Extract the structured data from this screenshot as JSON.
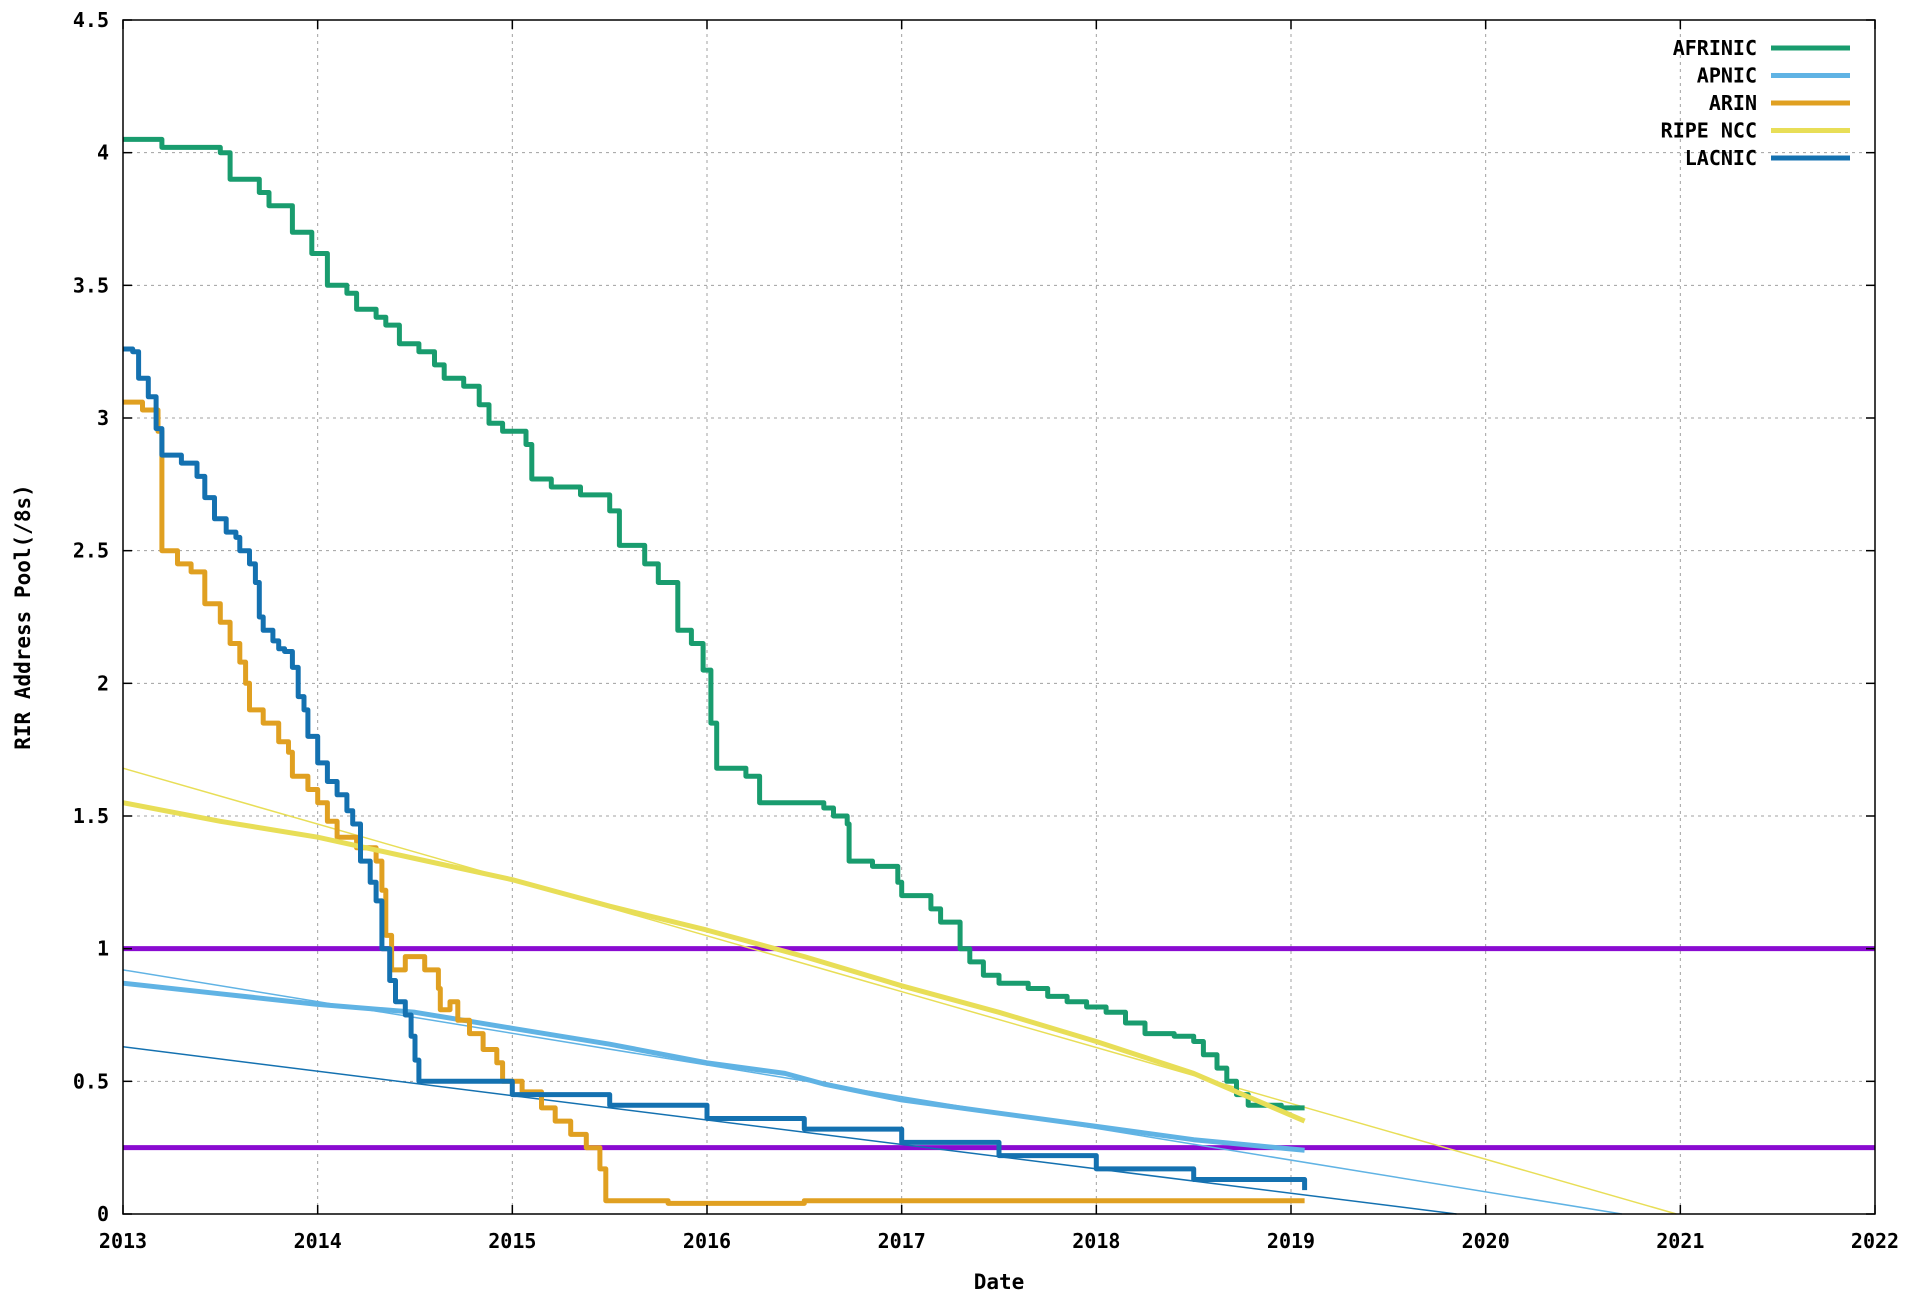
{
  "chart_data": {
    "type": "line",
    "xlabel": "Date",
    "ylabel": "RIR Address Pool(/8s)",
    "xlim": [
      2013,
      2022
    ],
    "ylim": [
      0,
      4.5
    ],
    "x_ticks": [
      "2013",
      "2014",
      "2015",
      "2016",
      "2017",
      "2018",
      "2019",
      "2020",
      "2021",
      "2022"
    ],
    "y_ticks": [
      "0",
      "0.5",
      "1",
      "1.5",
      "2",
      "2.5",
      "3",
      "3.5",
      "4",
      "4.5"
    ],
    "grid": true,
    "legend_position": "top-right",
    "thresholds": [
      {
        "value": 1.0,
        "color": "#8a0bd1"
      },
      {
        "value": 0.25,
        "color": "#8a0bd1"
      }
    ],
    "series": [
      {
        "name": "AFRINIC",
        "color": "#199c6e",
        "points": [
          [
            2013.0,
            4.05
          ],
          [
            2013.2,
            4.02
          ],
          [
            2013.5,
            4.0
          ],
          [
            2013.55,
            3.9
          ],
          [
            2013.7,
            3.85
          ],
          [
            2013.75,
            3.8
          ],
          [
            2013.87,
            3.7
          ],
          [
            2013.97,
            3.62
          ],
          [
            2014.05,
            3.5
          ],
          [
            2014.15,
            3.47
          ],
          [
            2014.2,
            3.41
          ],
          [
            2014.3,
            3.38
          ],
          [
            2014.35,
            3.35
          ],
          [
            2014.42,
            3.28
          ],
          [
            2014.52,
            3.25
          ],
          [
            2014.6,
            3.2
          ],
          [
            2014.65,
            3.15
          ],
          [
            2014.75,
            3.12
          ],
          [
            2014.83,
            3.05
          ],
          [
            2014.88,
            2.98
          ],
          [
            2014.95,
            2.95
          ],
          [
            2015.07,
            2.9
          ],
          [
            2015.1,
            2.77
          ],
          [
            2015.2,
            2.74
          ],
          [
            2015.35,
            2.71
          ],
          [
            2015.5,
            2.65
          ],
          [
            2015.55,
            2.52
          ],
          [
            2015.68,
            2.45
          ],
          [
            2015.75,
            2.38
          ],
          [
            2015.85,
            2.2
          ],
          [
            2015.92,
            2.15
          ],
          [
            2015.98,
            2.05
          ],
          [
            2016.02,
            1.85
          ],
          [
            2016.05,
            1.68
          ],
          [
            2016.2,
            1.65
          ],
          [
            2016.27,
            1.6
          ],
          [
            2016.27,
            1.55
          ],
          [
            2016.6,
            1.53
          ],
          [
            2016.65,
            1.5
          ],
          [
            2016.72,
            1.47
          ],
          [
            2016.73,
            1.33
          ],
          [
            2016.85,
            1.31
          ],
          [
            2016.98,
            1.25
          ],
          [
            2017.0,
            1.2
          ],
          [
            2017.15,
            1.15
          ],
          [
            2017.2,
            1.1
          ],
          [
            2017.3,
            1.0
          ],
          [
            2017.35,
            0.95
          ],
          [
            2017.42,
            0.9
          ],
          [
            2017.5,
            0.87
          ],
          [
            2017.65,
            0.85
          ],
          [
            2017.75,
            0.82
          ],
          [
            2017.85,
            0.8
          ],
          [
            2017.95,
            0.78
          ],
          [
            2018.05,
            0.76
          ],
          [
            2018.15,
            0.72
          ],
          [
            2018.25,
            0.68
          ],
          [
            2018.4,
            0.67
          ],
          [
            2018.5,
            0.65
          ],
          [
            2018.55,
            0.6
          ],
          [
            2018.62,
            0.55
          ],
          [
            2018.67,
            0.5
          ],
          [
            2018.72,
            0.45
          ],
          [
            2018.78,
            0.41
          ],
          [
            2018.95,
            0.4
          ],
          [
            2019.07,
            0.4
          ]
        ]
      },
      {
        "name": "APNIC",
        "color": "#60b3e4",
        "points": [
          [
            2013.0,
            0.87
          ],
          [
            2013.5,
            0.83
          ],
          [
            2014.0,
            0.79
          ],
          [
            2014.5,
            0.76
          ],
          [
            2015.0,
            0.7
          ],
          [
            2015.5,
            0.64
          ],
          [
            2016.0,
            0.57
          ],
          [
            2016.4,
            0.53
          ],
          [
            2016.6,
            0.49
          ],
          [
            2017.0,
            0.43
          ],
          [
            2017.5,
            0.38
          ],
          [
            2018.0,
            0.33
          ],
          [
            2018.5,
            0.28
          ],
          [
            2019.07,
            0.24
          ]
        ]
      },
      {
        "name": "ARIN",
        "color": "#e0a021",
        "points": [
          [
            2013.0,
            3.06
          ],
          [
            2013.1,
            3.03
          ],
          [
            2013.18,
            2.95
          ],
          [
            2013.2,
            2.5
          ],
          [
            2013.28,
            2.45
          ],
          [
            2013.35,
            2.42
          ],
          [
            2013.42,
            2.3
          ],
          [
            2013.5,
            2.23
          ],
          [
            2013.55,
            2.15
          ],
          [
            2013.6,
            2.08
          ],
          [
            2013.63,
            2.0
          ],
          [
            2013.65,
            1.9
          ],
          [
            2013.72,
            1.85
          ],
          [
            2013.8,
            1.78
          ],
          [
            2013.85,
            1.74
          ],
          [
            2013.87,
            1.65
          ],
          [
            2013.95,
            1.6
          ],
          [
            2014.0,
            1.55
          ],
          [
            2014.05,
            1.48
          ],
          [
            2014.1,
            1.42
          ],
          [
            2014.2,
            1.38
          ],
          [
            2014.3,
            1.33
          ],
          [
            2014.33,
            1.22
          ],
          [
            2014.35,
            1.05
          ],
          [
            2014.38,
            0.92
          ],
          [
            2014.45,
            0.97
          ],
          [
            2014.55,
            0.92
          ],
          [
            2014.62,
            0.85
          ],
          [
            2014.63,
            0.77
          ],
          [
            2014.68,
            0.8
          ],
          [
            2014.72,
            0.73
          ],
          [
            2014.78,
            0.68
          ],
          [
            2014.85,
            0.62
          ],
          [
            2014.92,
            0.57
          ],
          [
            2014.95,
            0.5
          ],
          [
            2015.05,
            0.46
          ],
          [
            2015.15,
            0.4
          ],
          [
            2015.22,
            0.35
          ],
          [
            2015.3,
            0.3
          ],
          [
            2015.38,
            0.25
          ],
          [
            2015.45,
            0.17
          ],
          [
            2015.48,
            0.05
          ],
          [
            2015.8,
            0.04
          ],
          [
            2016.5,
            0.05
          ],
          [
            2017.0,
            0.05
          ],
          [
            2017.32,
            0.05
          ],
          [
            2018.0,
            0.05
          ],
          [
            2019.07,
            0.05
          ]
        ]
      },
      {
        "name": "RIPE NCC",
        "color": "#e8de57",
        "points": [
          [
            2013.0,
            1.55
          ],
          [
            2013.5,
            1.48
          ],
          [
            2014.0,
            1.42
          ],
          [
            2014.5,
            1.34
          ],
          [
            2015.0,
            1.26
          ],
          [
            2015.5,
            1.16
          ],
          [
            2016.0,
            1.07
          ],
          [
            2016.5,
            0.97
          ],
          [
            2017.0,
            0.86
          ],
          [
            2017.5,
            0.76
          ],
          [
            2018.0,
            0.65
          ],
          [
            2018.5,
            0.53
          ],
          [
            2019.07,
            0.35
          ]
        ]
      },
      {
        "name": "LACNIC",
        "color": "#1471b0",
        "points": [
          [
            2013.0,
            3.26
          ],
          [
            2013.05,
            3.25
          ],
          [
            2013.08,
            3.15
          ],
          [
            2013.13,
            3.08
          ],
          [
            2013.17,
            2.96
          ],
          [
            2013.2,
            2.86
          ],
          [
            2013.3,
            2.83
          ],
          [
            2013.38,
            2.78
          ],
          [
            2013.42,
            2.7
          ],
          [
            2013.47,
            2.62
          ],
          [
            2013.53,
            2.57
          ],
          [
            2013.58,
            2.55
          ],
          [
            2013.6,
            2.5
          ],
          [
            2013.65,
            2.45
          ],
          [
            2013.68,
            2.38
          ],
          [
            2013.7,
            2.25
          ],
          [
            2013.72,
            2.2
          ],
          [
            2013.77,
            2.16
          ],
          [
            2013.8,
            2.13
          ],
          [
            2013.83,
            2.12
          ],
          [
            2013.87,
            2.06
          ],
          [
            2013.9,
            1.95
          ],
          [
            2013.93,
            1.9
          ],
          [
            2013.95,
            1.8
          ],
          [
            2014.0,
            1.7
          ],
          [
            2014.05,
            1.63
          ],
          [
            2014.1,
            1.58
          ],
          [
            2014.15,
            1.52
          ],
          [
            2014.18,
            1.47
          ],
          [
            2014.22,
            1.33
          ],
          [
            2014.27,
            1.25
          ],
          [
            2014.3,
            1.18
          ],
          [
            2014.33,
            1.0
          ],
          [
            2014.37,
            0.88
          ],
          [
            2014.4,
            0.8
          ],
          [
            2014.45,
            0.75
          ],
          [
            2014.48,
            0.67
          ],
          [
            2014.5,
            0.58
          ],
          [
            2014.52,
            0.5
          ],
          [
            2015.0,
            0.45
          ],
          [
            2015.5,
            0.41
          ],
          [
            2016.0,
            0.36
          ],
          [
            2016.5,
            0.32
          ],
          [
            2017.0,
            0.27
          ],
          [
            2017.5,
            0.22
          ],
          [
            2018.0,
            0.17
          ],
          [
            2018.5,
            0.13
          ],
          [
            2019.07,
            0.09
          ]
        ]
      }
    ],
    "trend_lines": [
      {
        "series": "APNIC",
        "color": "#60b3e4",
        "points": [
          [
            2013.0,
            0.92
          ],
          [
            2020.7,
            0.0
          ]
        ]
      },
      {
        "series": "RIPE NCC",
        "color": "#e8de57",
        "points": [
          [
            2013.0,
            1.68
          ],
          [
            2020.98,
            0.0
          ]
        ]
      },
      {
        "series": "LACNIC",
        "color": "#1471b0",
        "points": [
          [
            2013.0,
            0.63
          ],
          [
            2019.85,
            0.0
          ]
        ]
      }
    ]
  }
}
